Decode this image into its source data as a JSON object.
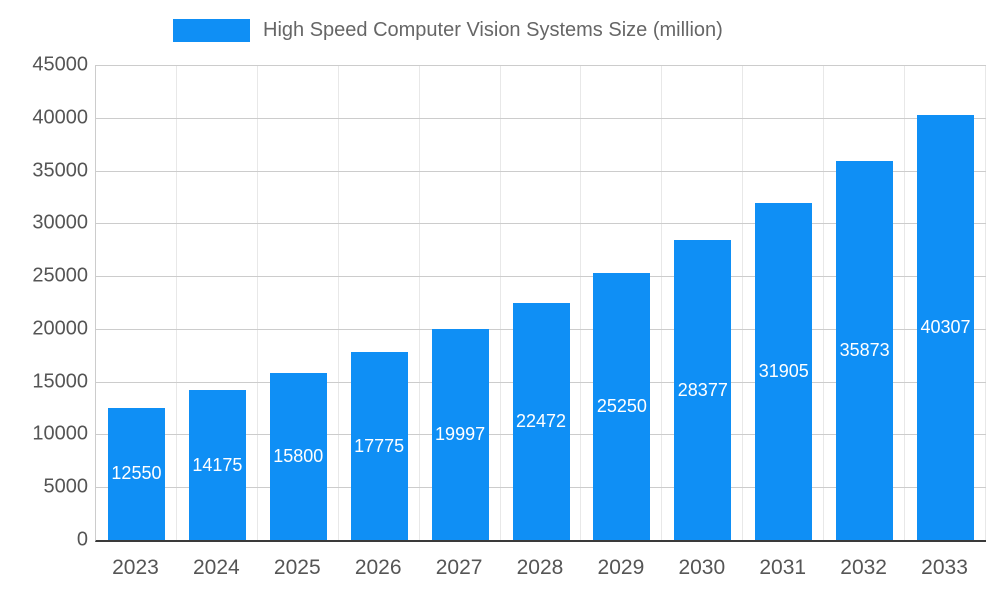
{
  "chart_data": {
    "type": "bar",
    "title": "High Speed Computer Vision Systems Size (million)",
    "categories": [
      "2023",
      "2024",
      "2025",
      "2026",
      "2027",
      "2028",
      "2029",
      "2030",
      "2031",
      "2032",
      "2033"
    ],
    "series": [
      {
        "name": "High Speed Computer Vision Systems Size (million)",
        "values": [
          12550,
          14175,
          15800,
          17775,
          19997,
          22472,
          25250,
          28377,
          31905,
          35873,
          40307
        ]
      }
    ],
    "xlabel": "",
    "ylabel": "",
    "ylim": [
      0,
      45000
    ],
    "y_tick_step": 5000,
    "y_tick_labels": [
      "0",
      "5000",
      "10000",
      "15000",
      "20000",
      "25000",
      "30000",
      "35000",
      "40000",
      "45000"
    ],
    "grid": true,
    "legend_position": "top",
    "bar_color": "#0f8ff5",
    "value_label_color": "#ffffff",
    "axis_text_color": "#555555",
    "legend_text_color": "#666666"
  }
}
